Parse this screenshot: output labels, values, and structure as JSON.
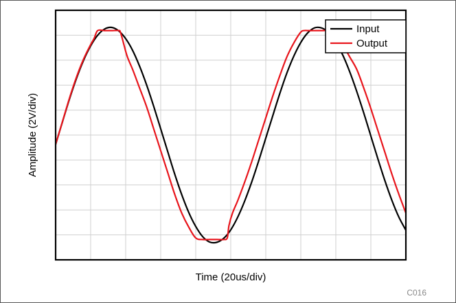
{
  "chart_data": {
    "type": "line",
    "title": "",
    "xlabel": "Time (20us/div)",
    "ylabel": "Amplitude (2V/div)",
    "xlim": [
      0,
      10
    ],
    "ylim": [
      -4,
      4
    ],
    "grid": true,
    "legend_position": "top-right",
    "series": [
      {
        "name": "Input",
        "color": "#000000",
        "width": 2.2,
        "x": [
          0.0,
          0.2,
          0.4,
          0.6,
          0.8,
          1.0,
          1.2,
          1.4,
          1.6,
          1.8,
          2.0,
          2.2,
          2.4,
          2.6,
          2.8,
          3.0,
          3.2,
          3.4,
          3.6,
          3.8,
          4.0,
          4.2,
          4.4,
          4.6,
          4.8,
          5.0,
          5.2,
          5.4,
          5.6,
          5.8,
          6.0,
          6.2,
          6.4,
          6.6,
          6.8,
          7.0,
          7.2,
          7.4,
          7.6,
          7.8,
          8.0,
          8.2,
          8.4,
          8.6,
          8.8,
          9.0,
          9.2,
          9.4,
          9.6,
          9.8,
          10.0
        ],
        "y": [
          -0.3,
          0.44,
          1.17,
          1.83,
          2.4,
          2.86,
          3.2,
          3.4,
          3.45,
          3.34,
          3.09,
          2.71,
          2.2,
          1.6,
          0.92,
          0.2,
          -0.53,
          -1.25,
          -1.91,
          -2.48,
          -2.93,
          -3.26,
          -3.43,
          -3.44,
          -3.31,
          -3.04,
          -2.63,
          -2.11,
          -1.5,
          -0.82,
          -0.1,
          0.62,
          1.33,
          1.98,
          2.53,
          2.97,
          3.28,
          3.44,
          3.43,
          3.28,
          2.98,
          2.56,
          2.02,
          1.39,
          0.7,
          -0.03,
          -0.76,
          -1.46,
          -2.09,
          -2.63,
          -3.05
        ]
      },
      {
        "name": "Output",
        "color": "#e8141b",
        "width": 2.2,
        "x": [
          0.0,
          0.2,
          0.4,
          0.6,
          0.8,
          1.0,
          1.1,
          1.2,
          1.4,
          1.6,
          1.8,
          1.85,
          1.95,
          2.05,
          2.2,
          2.4,
          2.6,
          2.8,
          3.0,
          3.2,
          3.4,
          3.6,
          3.8,
          4.0,
          4.2,
          4.4,
          4.6,
          4.8,
          4.9,
          4.95,
          5.05,
          5.2,
          5.4,
          5.6,
          5.8,
          6.0,
          6.2,
          6.4,
          6.6,
          6.8,
          7.0,
          7.1,
          7.2,
          7.4,
          7.6,
          7.8,
          8.0,
          8.2,
          8.4,
          8.6,
          8.8,
          9.0,
          9.2,
          9.4,
          9.6,
          9.8,
          10.0
        ],
        "y": [
          -0.3,
          0.45,
          1.2,
          1.87,
          2.44,
          2.9,
          3.1,
          3.35,
          3.35,
          3.35,
          3.35,
          3.3,
          2.9,
          2.5,
          2.1,
          1.5,
          0.9,
          0.2,
          -0.5,
          -1.2,
          -1.9,
          -2.5,
          -2.95,
          -3.3,
          -3.35,
          -3.35,
          -3.35,
          -3.35,
          -3.3,
          -2.9,
          -2.5,
          -2.1,
          -1.5,
          -0.85,
          -0.15,
          0.55,
          1.25,
          1.9,
          2.5,
          2.95,
          3.3,
          3.35,
          3.35,
          3.35,
          3.35,
          3.35,
          3.3,
          2.9,
          2.5,
          2.1,
          1.5,
          0.85,
          0.15,
          -0.55,
          -1.25,
          -1.9,
          -2.5
        ]
      }
    ]
  },
  "footer": {
    "code": "C016"
  }
}
